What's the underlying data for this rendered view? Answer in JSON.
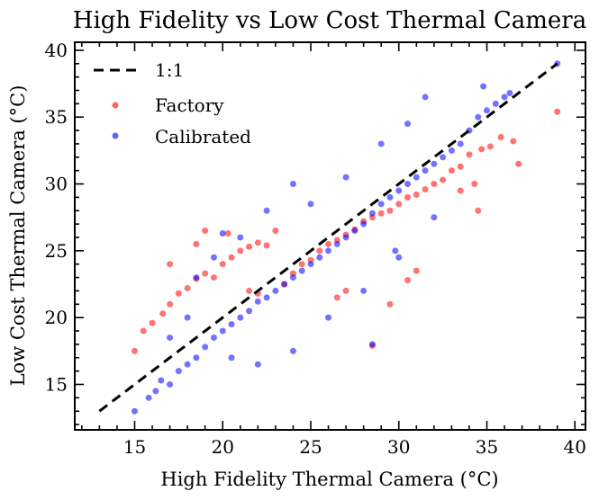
{
  "chart_data": {
    "type": "scatter",
    "title": "High Fidelity vs Low Cost Thermal Camera",
    "xlabel": "High Fidelity Thermal Camera (°C)",
    "ylabel": "Low Cost Thermal Camera (°C)",
    "xlim": [
      11.6,
      40.6
    ],
    "ylim": [
      11.6,
      40.6
    ],
    "xticks": [
      15,
      20,
      25,
      30,
      35,
      40
    ],
    "yticks": [
      15,
      20,
      25,
      30,
      35,
      40
    ],
    "xtick_labels": [
      "15",
      "20",
      "25",
      "30",
      "35",
      "40"
    ],
    "ytick_labels": [
      "15",
      "20",
      "25",
      "30",
      "35",
      "40"
    ],
    "grid": false,
    "legend_position": "top-left",
    "reference_line": {
      "name": "1:1",
      "style": "dashed",
      "color": "#000000",
      "x": [
        13,
        39
      ],
      "y": [
        13,
        39
      ]
    },
    "series": [
      {
        "name": "Factory",
        "color": "#ff0000",
        "points": [
          [
            15.5,
            19.0
          ],
          [
            16.0,
            19.6
          ],
          [
            16.6,
            20.3
          ],
          [
            17.0,
            21.0
          ],
          [
            17.5,
            21.8
          ],
          [
            18.0,
            22.2
          ],
          [
            18.5,
            22.9
          ],
          [
            19.0,
            23.3
          ],
          [
            19.5,
            23.0
          ],
          [
            20.0,
            24.0
          ],
          [
            20.3,
            26.3
          ],
          [
            20.5,
            24.5
          ],
          [
            21.0,
            25.0
          ],
          [
            21.5,
            25.3
          ],
          [
            22.0,
            25.6
          ],
          [
            22.5,
            25.4
          ],
          [
            23.0,
            26.5
          ],
          [
            21.5,
            22.0
          ],
          [
            22.0,
            21.8
          ],
          [
            23.5,
            22.5
          ],
          [
            24.0,
            23.3
          ],
          [
            24.5,
            24.0
          ],
          [
            25.0,
            24.3
          ],
          [
            25.5,
            25.0
          ],
          [
            26.0,
            25.5
          ],
          [
            26.5,
            25.8
          ],
          [
            27.0,
            26.2
          ],
          [
            27.5,
            26.6
          ],
          [
            28.0,
            27.2
          ],
          [
            28.5,
            27.5
          ],
          [
            29.0,
            27.8
          ],
          [
            29.5,
            28.0
          ],
          [
            30.0,
            28.5
          ],
          [
            30.5,
            29.0
          ],
          [
            31.0,
            29.2
          ],
          [
            31.5,
            29.6
          ],
          [
            32.0,
            30.0
          ],
          [
            32.5,
            30.3
          ],
          [
            33.0,
            31.0
          ],
          [
            33.5,
            31.3
          ],
          [
            34.0,
            32.2
          ],
          [
            34.3,
            30.0
          ],
          [
            34.7,
            32.6
          ],
          [
            35.2,
            32.8
          ],
          [
            35.8,
            33.5
          ],
          [
            36.5,
            33.2
          ],
          [
            36.8,
            31.5
          ],
          [
            39.0,
            35.4
          ],
          [
            15.0,
            17.5
          ],
          [
            28.5,
            17.9
          ],
          [
            29.5,
            21.0
          ],
          [
            31.0,
            23.5
          ],
          [
            30.5,
            22.8
          ],
          [
            27.0,
            22.0
          ],
          [
            26.5,
            21.5
          ],
          [
            19.0,
            26.5
          ],
          [
            18.5,
            25.5
          ],
          [
            17.0,
            24.0
          ],
          [
            33.5,
            29.5
          ],
          [
            34.5,
            28.0
          ]
        ]
      },
      {
        "name": "Calibrated",
        "color": "#0000ff",
        "points": [
          [
            15.0,
            13.0
          ],
          [
            15.8,
            14.0
          ],
          [
            16.2,
            14.5
          ],
          [
            16.5,
            15.3
          ],
          [
            17.0,
            15.0
          ],
          [
            17.5,
            16.0
          ],
          [
            18.0,
            16.5
          ],
          [
            18.5,
            17.0
          ],
          [
            19.0,
            17.8
          ],
          [
            19.5,
            18.5
          ],
          [
            20.0,
            19.0
          ],
          [
            20.5,
            19.5
          ],
          [
            21.0,
            20.0
          ],
          [
            21.5,
            20.5
          ],
          [
            22.0,
            21.2
          ],
          [
            22.5,
            21.5
          ],
          [
            23.0,
            22.0
          ],
          [
            23.5,
            22.5
          ],
          [
            24.0,
            23.0
          ],
          [
            24.5,
            23.5
          ],
          [
            25.0,
            24.0
          ],
          [
            25.5,
            24.5
          ],
          [
            26.0,
            25.0
          ],
          [
            26.5,
            25.5
          ],
          [
            27.0,
            26.0
          ],
          [
            27.5,
            26.5
          ],
          [
            28.0,
            27.0
          ],
          [
            28.5,
            27.8
          ],
          [
            29.0,
            28.5
          ],
          [
            29.5,
            29.0
          ],
          [
            30.0,
            29.5
          ],
          [
            30.5,
            30.0
          ],
          [
            31.0,
            30.5
          ],
          [
            31.5,
            31.0
          ],
          [
            32.0,
            31.5
          ],
          [
            32.5,
            32.0
          ],
          [
            33.0,
            32.5
          ],
          [
            33.5,
            33.0
          ],
          [
            34.0,
            34.0
          ],
          [
            34.5,
            35.0
          ],
          [
            35.0,
            35.5
          ],
          [
            35.5,
            36.0
          ],
          [
            36.0,
            36.5
          ],
          [
            36.3,
            36.8
          ],
          [
            39.0,
            39.0
          ],
          [
            34.8,
            37.3
          ],
          [
            31.5,
            36.5
          ],
          [
            24.0,
            30.0
          ],
          [
            22.5,
            28.0
          ],
          [
            21.0,
            26.0
          ],
          [
            19.5,
            24.5
          ],
          [
            18.5,
            23.0
          ],
          [
            20.0,
            26.3
          ],
          [
            20.5,
            17.0
          ],
          [
            22.0,
            16.5
          ],
          [
            24.0,
            17.5
          ],
          [
            26.0,
            20.0
          ],
          [
            28.0,
            22.0
          ],
          [
            30.0,
            24.5
          ],
          [
            32.0,
            27.5
          ],
          [
            28.5,
            18.0
          ],
          [
            29.8,
            25.0
          ],
          [
            18.0,
            20.0
          ],
          [
            17.0,
            18.5
          ],
          [
            25.0,
            28.5
          ],
          [
            27.0,
            30.5
          ],
          [
            29.0,
            33.0
          ],
          [
            30.5,
            34.5
          ]
        ]
      }
    ]
  }
}
